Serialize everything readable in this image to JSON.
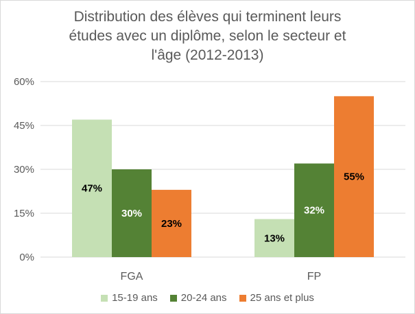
{
  "chart_data": {
    "type": "bar",
    "title_lines": [
      "Distribution des élèves qui terminent leurs",
      "études avec un diplôme, selon le secteur et",
      "l'âge (2012-2013)"
    ],
    "categories": [
      "FGA",
      "FP"
    ],
    "series": [
      {
        "name": "15-19 ans",
        "values": [
          47,
          13
        ],
        "labels": [
          "47%",
          "13%"
        ],
        "color": "#c5e0b4",
        "label_color": "#000000"
      },
      {
        "name": "20-24 ans",
        "values": [
          30,
          32
        ],
        "labels": [
          "30%",
          "32%"
        ],
        "color": "#548235",
        "label_color": "#ffffff"
      },
      {
        "name": "25 ans et plus",
        "values": [
          23,
          55
        ],
        "labels": [
          "23%",
          "55%"
        ],
        "color": "#ed7d31",
        "label_color": "#000000"
      }
    ],
    "ylim": [
      0,
      60
    ],
    "yticks": [
      0,
      15,
      30,
      45,
      60
    ],
    "ytick_labels": [
      "0%",
      "15%",
      "30%",
      "45%",
      "60%"
    ],
    "grid": true,
    "gridline_color": "#d9d9d9",
    "legend_position": "bottom"
  }
}
